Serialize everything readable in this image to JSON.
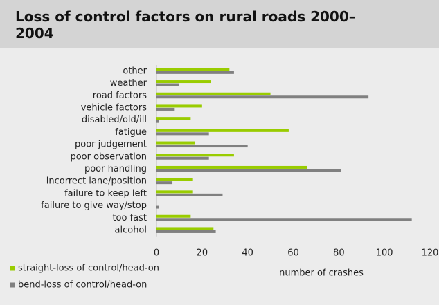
{
  "chart_data": {
    "type": "barh",
    "title": "Loss of control factors on rural roads 2000–2004",
    "xlabel": "number of crashes",
    "categories": [
      "other",
      "weather",
      "road factors",
      "vehicle factors",
      "disabled/old/ill",
      "fatigue",
      "poor judgement",
      "poor observation",
      "poor handling",
      "incorrect lane/position",
      "failure to keep left",
      "failure to give way/stop",
      "too fast",
      "alcohol"
    ],
    "series": [
      {
        "name": "straight-loss of control/head-on",
        "color": "#99cc00",
        "values": [
          32,
          24,
          50,
          20,
          15,
          58,
          17,
          34,
          66,
          16,
          16,
          0,
          15,
          25
        ]
      },
      {
        "name": "bend-loss of control/head-on",
        "color": "#808080",
        "values": [
          34,
          10,
          93,
          8,
          1,
          23,
          40,
          23,
          81,
          7,
          29,
          1,
          112,
          26
        ]
      }
    ],
    "xlim": [
      0,
      120
    ],
    "xticks": [
      0,
      20,
      40,
      60,
      80,
      100,
      120
    ],
    "grid": false
  }
}
